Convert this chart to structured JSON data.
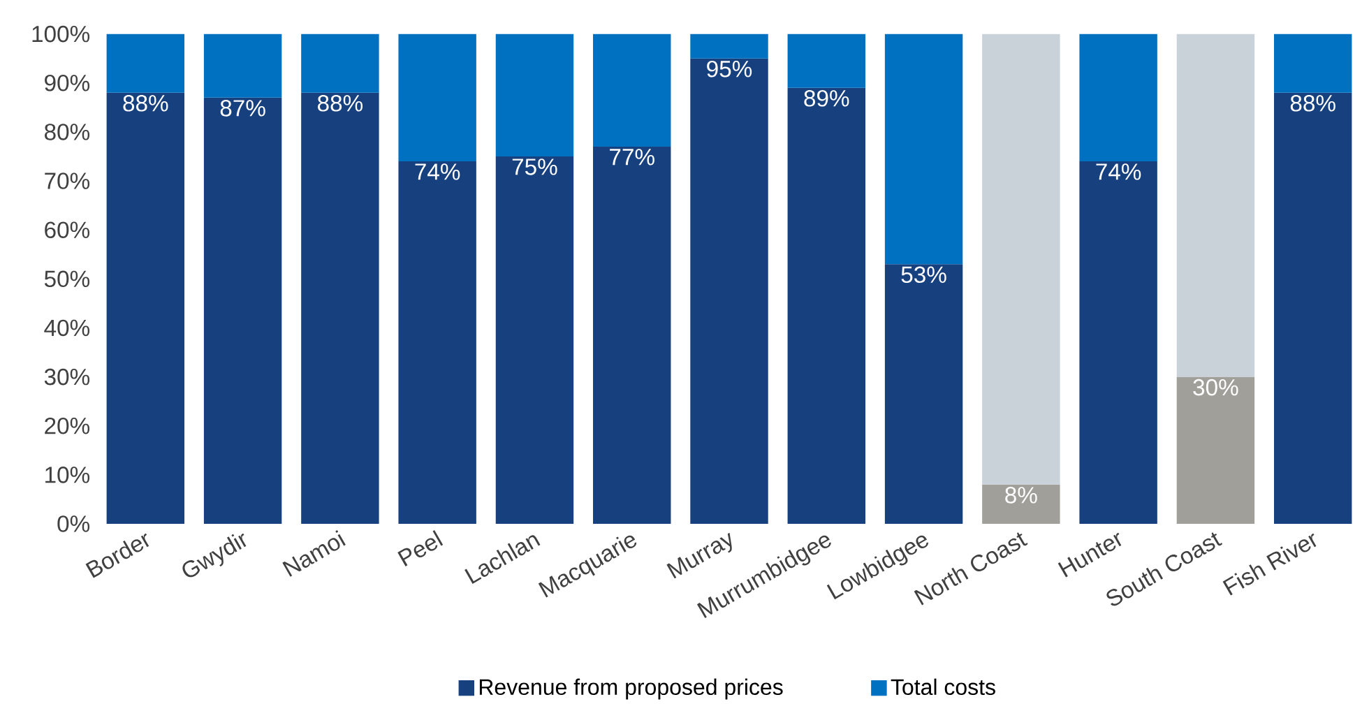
{
  "chart_data": {
    "type": "bar",
    "stacked": true,
    "categories": [
      "Border",
      "Gwydir",
      "Namoi",
      "Peel",
      "Lachlan",
      "Macquarie",
      "Murray",
      "Murrumbidgee",
      "Lowbidgee",
      "North Coast",
      "Hunter",
      "South Coast",
      "Fish River"
    ],
    "series": [
      {
        "name": "Revenue from proposed prices",
        "color": "#17407e",
        "colors": [
          "#17407e",
          "#17407e",
          "#17407e",
          "#17407e",
          "#17407e",
          "#17407e",
          "#17407e",
          "#17407e",
          "#17407e",
          "#a09f99",
          "#17407e",
          "#a09f99",
          "#17407e"
        ],
        "values": [
          88,
          87,
          88,
          74,
          75,
          77,
          95,
          89,
          53,
          8,
          74,
          30,
          88
        ],
        "value_labels": [
          "88%",
          "87%",
          "88%",
          "74%",
          "75%",
          "77%",
          "95%",
          "89%",
          "53%",
          "8%",
          "74%",
          "30%",
          "88%"
        ]
      },
      {
        "name": "Total costs",
        "color": "#0070c0",
        "colors": [
          "#0070c0",
          "#0070c0",
          "#0070c0",
          "#0070c0",
          "#0070c0",
          "#0070c0",
          "#0070c0",
          "#0070c0",
          "#0070c0",
          "#c9d1d9",
          "#0070c0",
          "#c9d1d9",
          "#0070c0"
        ],
        "values": [
          12,
          13,
          12,
          26,
          25,
          23,
          5,
          11,
          47,
          92,
          26,
          70,
          12
        ]
      }
    ],
    "ylim": [
      0,
      100
    ],
    "yticks": [
      {
        "value": 0,
        "label": "0%"
      },
      {
        "value": 10,
        "label": "10%"
      },
      {
        "value": 20,
        "label": "20%"
      },
      {
        "value": 30,
        "label": "30%"
      },
      {
        "value": 40,
        "label": "40%"
      },
      {
        "value": 50,
        "label": "50%"
      },
      {
        "value": 60,
        "label": "60%"
      },
      {
        "value": 70,
        "label": "70%"
      },
      {
        "value": 80,
        "label": "80%"
      },
      {
        "value": 90,
        "label": "90%"
      },
      {
        "value": 100,
        "label": "100%"
      }
    ],
    "grid": false,
    "legend": "bottom"
  }
}
